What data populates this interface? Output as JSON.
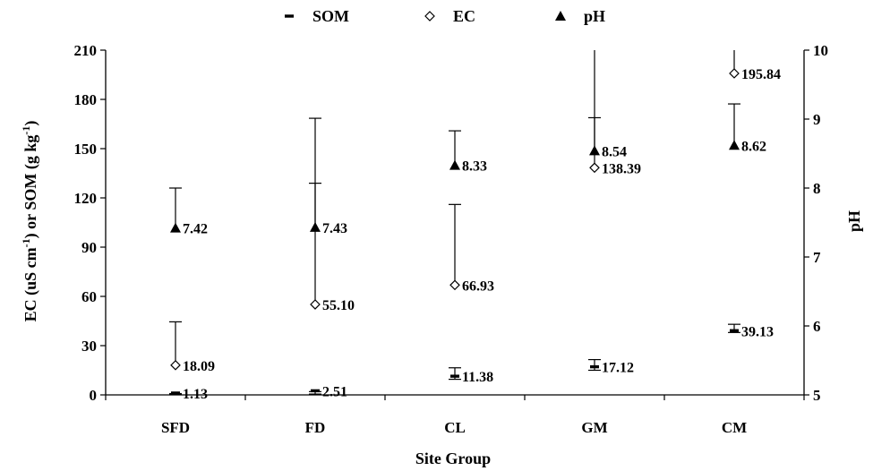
{
  "chart_data": {
    "type": "scatter",
    "categories": [
      "SFD",
      "FD",
      "CL",
      "GM",
      "CM"
    ],
    "xlabel": "Site Group",
    "ylabel_left": "EC (uS cm-1) or SOM (g kg-1)",
    "ylabel_right": "pH",
    "ylim_left": [
      0,
      210
    ],
    "yticks_left": [
      0,
      30,
      60,
      90,
      120,
      150,
      180,
      210
    ],
    "ylim_right": [
      5,
      10
    ],
    "yticks_right": [
      5,
      6,
      7,
      8,
      9,
      10
    ],
    "legend_position": "top-center",
    "grid": false,
    "series": [
      {
        "name": "SOM",
        "marker": "dash",
        "axis": "left",
        "values": [
          1.13,
          2.51,
          11.38,
          17.12,
          39.13
        ],
        "labels": [
          "1.13",
          "2.51",
          "11.38",
          "17.12",
          "39.13"
        ],
        "error_upper": [
          0.5,
          0.5,
          16.5,
          21.5,
          43.0
        ],
        "error_lower": [
          0.8,
          2.0,
          9.5,
          15.0,
          38.0
        ]
      },
      {
        "name": "EC",
        "marker": "diamond-open",
        "axis": "left",
        "values": [
          18.09,
          55.1,
          66.93,
          138.39,
          195.84
        ],
        "labels": [
          "18.09",
          "55.10",
          "66.93",
          "138.39",
          "195.84"
        ],
        "error_upper": [
          44.5,
          168.5,
          116.0,
          210,
          210
        ],
        "error_lower": [
          18.09,
          55.1,
          66.93,
          138.39,
          195.84
        ]
      },
      {
        "name": "pH",
        "marker": "triangle-filled",
        "axis": "right",
        "values": [
          7.42,
          7.43,
          8.33,
          8.54,
          8.62
        ],
        "labels": [
          "7.42",
          "7.43",
          "8.33",
          "8.54",
          "8.62"
        ],
        "error_upper": [
          8.0,
          8.07,
          8.83,
          9.02,
          9.22
        ],
        "error_lower": [
          7.42,
          7.43,
          8.33,
          8.54,
          8.62
        ]
      }
    ]
  }
}
